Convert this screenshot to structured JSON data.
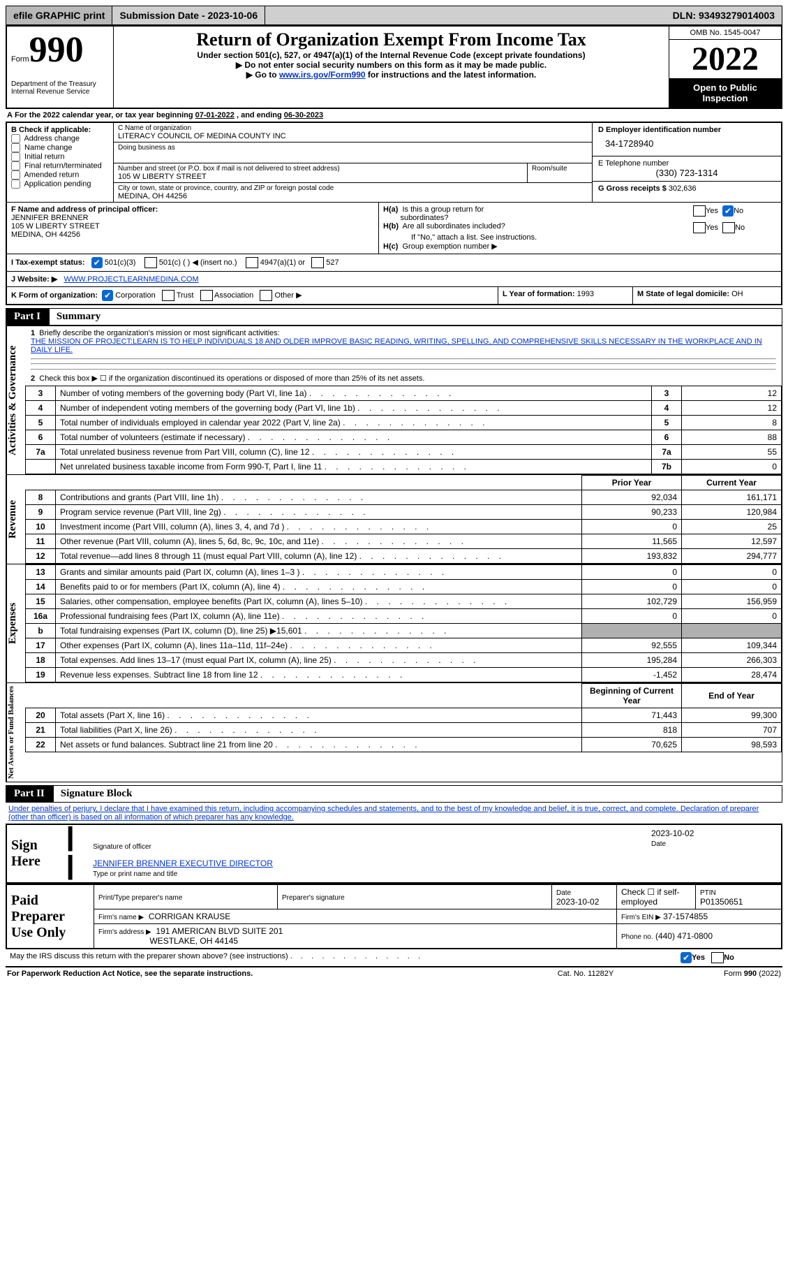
{
  "topbar": {
    "efile": "efile GRAPHIC print",
    "submission_label": "Submission Date - ",
    "submission_date": "2023-10-06",
    "dln_label": "DLN: ",
    "dln": "93493279014003"
  },
  "header": {
    "form_word": "Form",
    "form_number": "990",
    "title": "Return of Organization Exempt From Income Tax",
    "subtitle1": "Under section 501(c), 527, or 4947(a)(1) of the Internal Revenue Code (except private foundations)",
    "subtitle2": "▶ Do not enter social security numbers on this form as it may be made public.",
    "subtitle3_pre": "▶ Go to ",
    "subtitle3_link": "www.irs.gov/Form990",
    "subtitle3_post": " for instructions and the latest information.",
    "dept": "Department of the Treasury",
    "irs": "Internal Revenue Service",
    "omb": "OMB No. 1545-0047",
    "year": "2022",
    "badge": "Open to Public Inspection"
  },
  "periodA": {
    "text_pre": "For the 2022 calendar year, or tax year beginning ",
    "begin": "07-01-2022",
    "mid": " , and ending ",
    "end": "06-30-2023"
  },
  "sectionB": {
    "intro": "B Check if applicable:",
    "opts": [
      "Address change",
      "Name change",
      "Initial return",
      "Final return/terminated",
      "Amended return",
      "Application pending"
    ]
  },
  "sectionC": {
    "name_label": "C Name of organization",
    "name": "LITERACY COUNCIL OF MEDINA COUNTY INC",
    "dba_label": "Doing business as",
    "addr_label": "Number and street (or P.O. box if mail is not delivered to street address)",
    "room_label": "Room/suite",
    "addr": "105 W LIBERTY STREET",
    "city_label": "City or town, state or province, country, and ZIP or foreign postal code",
    "city": "MEDINA, OH  44256"
  },
  "sectionD": {
    "label": "D Employer identification number",
    "val": "34-1728940"
  },
  "sectionE": {
    "label": "E Telephone number",
    "val": "(330) 723-1314"
  },
  "sectionG": {
    "label": "G Gross receipts $",
    "val": "302,636"
  },
  "sectionF": {
    "label": "F Name and address of principal officer:",
    "name": "JENNIFER BRENNER",
    "addr1": "105 W LIBERTY STREET",
    "addr2": "MEDINA, OH  44256"
  },
  "sectionH": {
    "a_label": "H(a)  Is this a group return for subordinates?",
    "b_label": "H(b)  Are all subordinates included?",
    "b_note": "If \"No,\" attach a list. See instructions.",
    "c_label": "H(c)  Group exemption number ▶",
    "yes": "Yes",
    "no": "No"
  },
  "sectionI": {
    "label": "I    Tax-exempt status:",
    "o1": "501(c)(3)",
    "o2": "501(c) (  ) ◀ (insert no.)",
    "o3": "4947(a)(1) or",
    "o4": "527"
  },
  "sectionJ": {
    "label": "J    Website: ▶",
    "val": "WWW.PROJECTLEARNMEDINA.COM"
  },
  "sectionK": {
    "label": "K Form of organization:",
    "o1": "Corporation",
    "o2": "Trust",
    "o3": "Association",
    "o4": "Other ▶"
  },
  "sectionL": {
    "label": "L Year of formation:",
    "val": "1993"
  },
  "sectionM": {
    "label": "M State of legal domicile:",
    "val": "OH"
  },
  "partI": {
    "num": "Part I",
    "title": "Summary"
  },
  "summary": {
    "q1_label": "Briefly describe the organization's mission or most significant activities:",
    "q1_text": "THE MISSION OF PROJECT:LEARN IS TO HELP INDIVIDUALS 18 AND OLDER IMPROVE BASIC READING, WRITING, SPELLING, AND COMPREHENSIVE SKILLS NECESSARY IN THE WORKPLACE AND IN DAILY LIFE.",
    "q2": "Check this box ▶ ☐  if the organization discontinued its operations or disposed of more than 25% of its net assets.",
    "rows_ag": [
      {
        "n": "3",
        "t": "Number of voting members of the governing body (Part VI, line 1a)",
        "bn": "3",
        "v": "12"
      },
      {
        "n": "4",
        "t": "Number of independent voting members of the governing body (Part VI, line 1b)",
        "bn": "4",
        "v": "12"
      },
      {
        "n": "5",
        "t": "Total number of individuals employed in calendar year 2022 (Part V, line 2a)",
        "bn": "5",
        "v": "8"
      },
      {
        "n": "6",
        "t": "Total number of volunteers (estimate if necessary)",
        "bn": "6",
        "v": "88"
      },
      {
        "n": "7a",
        "t": "Total unrelated business revenue from Part VIII, column (C), line 12",
        "bn": "7a",
        "v": "55"
      },
      {
        "n": "",
        "t": "Net unrelated business taxable income from Form 990-T, Part I, line 11",
        "bn": "7b",
        "v": "0"
      }
    ],
    "col_prior": "Prior Year",
    "col_current": "Current Year",
    "rev": [
      {
        "n": "8",
        "t": "Contributions and grants (Part VIII, line 1h)",
        "p": "92,034",
        "c": "161,171"
      },
      {
        "n": "9",
        "t": "Program service revenue (Part VIII, line 2g)",
        "p": "90,233",
        "c": "120,984"
      },
      {
        "n": "10",
        "t": "Investment income (Part VIII, column (A), lines 3, 4, and 7d )",
        "p": "0",
        "c": "25"
      },
      {
        "n": "11",
        "t": "Other revenue (Part VIII, column (A), lines 5, 6d, 8c, 9c, 10c, and 11e)",
        "p": "11,565",
        "c": "12,597"
      },
      {
        "n": "12",
        "t": "Total revenue—add lines 8 through 11 (must equal Part VIII, column (A), line 12)",
        "p": "193,832",
        "c": "294,777"
      }
    ],
    "exp": [
      {
        "n": "13",
        "t": "Grants and similar amounts paid (Part IX, column (A), lines 1–3 )",
        "p": "0",
        "c": "0"
      },
      {
        "n": "14",
        "t": "Benefits paid to or for members (Part IX, column (A), line 4)",
        "p": "0",
        "c": "0"
      },
      {
        "n": "15",
        "t": "Salaries, other compensation, employee benefits (Part IX, column (A), lines 5–10)",
        "p": "102,729",
        "c": "156,959"
      },
      {
        "n": "16a",
        "t": "Professional fundraising fees (Part IX, column (A), line 11e)",
        "p": "0",
        "c": "0"
      },
      {
        "n": "b",
        "t": "Total fundraising expenses (Part IX, column (D), line 25) ▶15,601",
        "p": "shade",
        "c": "shade"
      },
      {
        "n": "17",
        "t": "Other expenses (Part IX, column (A), lines 11a–11d, 11f–24e)",
        "p": "92,555",
        "c": "109,344"
      },
      {
        "n": "18",
        "t": "Total expenses. Add lines 13–17 (must equal Part IX, column (A), line 25)",
        "p": "195,284",
        "c": "266,303"
      },
      {
        "n": "19",
        "t": "Revenue less expenses. Subtract line 18 from line 12",
        "p": "-1,452",
        "c": "28,474"
      }
    ],
    "col_begin": "Beginning of Current Year",
    "col_end": "End of Year",
    "net": [
      {
        "n": "20",
        "t": "Total assets (Part X, line 16)",
        "p": "71,443",
        "c": "99,300"
      },
      {
        "n": "21",
        "t": "Total liabilities (Part X, line 26)",
        "p": "818",
        "c": "707"
      },
      {
        "n": "22",
        "t": "Net assets or fund balances. Subtract line 21 from line 20",
        "p": "70,625",
        "c": "98,593"
      }
    ],
    "v_ag": "Activities & Governance",
    "v_rev": "Revenue",
    "v_exp": "Expenses",
    "v_net": "Net Assets or Fund Balances"
  },
  "partII": {
    "num": "Part II",
    "title": "Signature Block",
    "perjury": "Under penalties of perjury, I declare that I have examined this return, including accompanying schedules and statements, and to the best of my knowledge and belief, it is true, correct, and complete. Declaration of preparer (other than officer) is based on all information of which preparer has any knowledge."
  },
  "sign": {
    "here": "Sign Here",
    "sig_label": "Signature of officer",
    "sig_date": "2023-10-02",
    "date_label": "Date",
    "name": "JENNIFER BRENNER  EXECUTIVE DIRECTOR",
    "name_label": "Type or print name and title",
    "paid": "Paid Preparer Use Only",
    "p_name_label": "Print/Type preparer's name",
    "p_sig_label": "Preparer's signature",
    "p_date_label": "Date",
    "p_date": "2023-10-02",
    "p_check_label": "Check ☐ if self-employed",
    "ptin_label": "PTIN",
    "ptin": "P01350651",
    "firm_name_label": "Firm's name    ▶",
    "firm_name": "CORRIGAN KRAUSE",
    "firm_ein_label": "Firm's EIN ▶",
    "firm_ein": "37-1574855",
    "firm_addr_label": "Firm's address ▶",
    "firm_addr1": "191 AMERICAN BLVD SUITE 201",
    "firm_addr2": "WESTLAKE, OH  44145",
    "phone_label": "Phone no.",
    "phone": "(440) 471-0800",
    "discuss": "May the IRS discuss this return with the preparer shown above? (see instructions)",
    "yes": "Yes",
    "no": "No"
  },
  "footer": {
    "left": "For Paperwork Reduction Act Notice, see the separate instructions.",
    "mid": "Cat. No. 11282Y",
    "right": "Form 990 (2022)"
  }
}
